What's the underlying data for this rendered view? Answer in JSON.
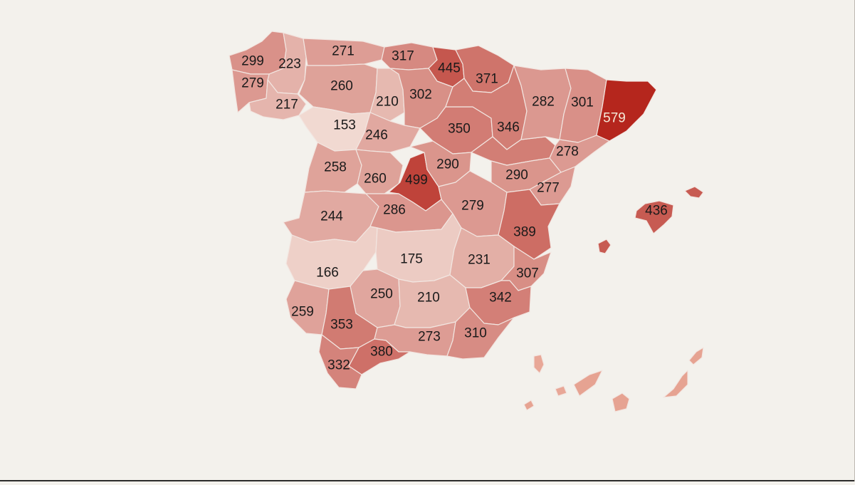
{
  "map": {
    "scale": {
      "min": 153,
      "max": 579,
      "low_color": "#f1d9d1",
      "high_color": "#b5261d"
    },
    "regions": [
      {
        "id": "a-coruna",
        "value": 299
      },
      {
        "id": "lugo",
        "value": 223
      },
      {
        "id": "asturias",
        "value": 271
      },
      {
        "id": "cantabria",
        "value": 317
      },
      {
        "id": "bizkaia",
        "value": 445
      },
      {
        "id": "gipuzkoa",
        "value": 371
      },
      {
        "id": "pontevedra",
        "value": 279
      },
      {
        "id": "ourense",
        "value": 217
      },
      {
        "id": "leon",
        "value": 260
      },
      {
        "id": "palencia",
        "value": 210
      },
      {
        "id": "burgos",
        "value": 302
      },
      {
        "id": "navarra",
        "value": 346
      },
      {
        "id": "huesca",
        "value": 282
      },
      {
        "id": "lleida",
        "value": 301
      },
      {
        "id": "girona",
        "value": 579
      },
      {
        "id": "zamora",
        "value": 153
      },
      {
        "id": "valladolid",
        "value": 246
      },
      {
        "id": "soria",
        "value": 350
      },
      {
        "id": "zaragoza",
        "value": 346
      },
      {
        "id": "tarragona",
        "value": 278
      },
      {
        "id": "salamanca",
        "value": 258
      },
      {
        "id": "avila",
        "value": 260
      },
      {
        "id": "madrid",
        "value": 499
      },
      {
        "id": "guadalajara",
        "value": 290
      },
      {
        "id": "teruel",
        "value": 290
      },
      {
        "id": "castellon",
        "value": 277
      },
      {
        "id": "caceres",
        "value": 244
      },
      {
        "id": "toledo",
        "value": 286
      },
      {
        "id": "cuenca",
        "value": 279
      },
      {
        "id": "valencia",
        "value": 389
      },
      {
        "id": "mallorca",
        "value": 436
      },
      {
        "id": "badajoz",
        "value": 166
      },
      {
        "id": "ciudad-real",
        "value": 175
      },
      {
        "id": "albacete",
        "value": 231
      },
      {
        "id": "alicante",
        "value": 307
      },
      {
        "id": "cordoba",
        "value": 250
      },
      {
        "id": "jaen",
        "value": 210
      },
      {
        "id": "murcia",
        "value": 342
      },
      {
        "id": "huelva",
        "value": 259
      },
      {
        "id": "sevilla",
        "value": 353
      },
      {
        "id": "granada",
        "value": 273
      },
      {
        "id": "almeria",
        "value": 310
      },
      {
        "id": "malaga",
        "value": 380
      },
      {
        "id": "cadiz",
        "value": 332
      }
    ]
  }
}
